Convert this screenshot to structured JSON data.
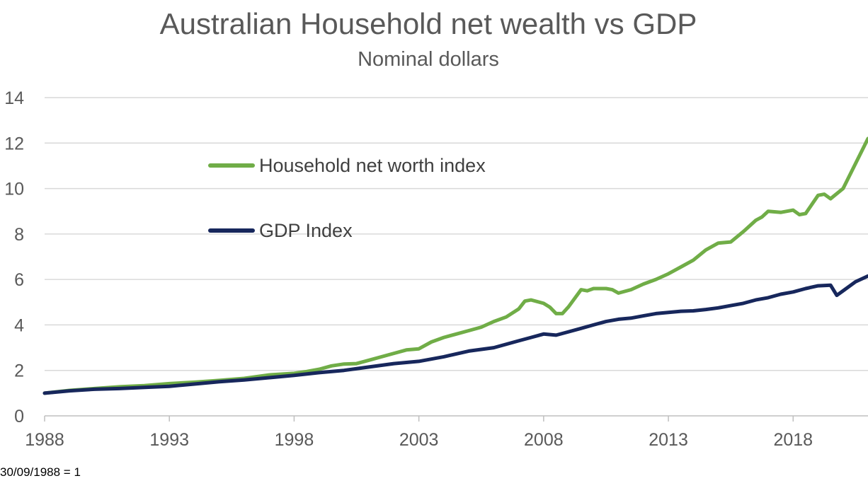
{
  "chart_data": {
    "type": "line",
    "title": "Australian Household net wealth vs GDP",
    "subtitle": "Nominal dollars",
    "note": "30/09/1988 = 1",
    "xlim": [
      1988,
      2021
    ],
    "ylim": [
      0,
      14
    ],
    "x_ticks": [
      "1988",
      "1993",
      "1998",
      "2003",
      "2008",
      "2013",
      "2018"
    ],
    "y_ticks": [
      "0",
      "2",
      "4",
      "6",
      "8",
      "10",
      "12",
      "14"
    ],
    "grid": true,
    "legend_position": "upper-left-inside",
    "series": [
      {
        "name": "Household net worth index",
        "color": "#70ad47",
        "x": [
          1988,
          1989,
          1990,
          1991,
          1992,
          1993,
          1994,
          1995,
          1996,
          1997,
          1998,
          1998.5,
          1999,
          1999.5,
          2000,
          2000.5,
          2001,
          2002,
          2002.5,
          2003,
          2003.5,
          2004,
          2004.5,
          2005,
          2005.5,
          2006,
          2006.5,
          2007,
          2007.25,
          2007.5,
          2008,
          2008.25,
          2008.5,
          2008.75,
          2009,
          2009.5,
          2009.75,
          2010,
          2010.5,
          2010.75,
          2011,
          2011.5,
          2012,
          2012.5,
          2013,
          2013.5,
          2014,
          2014.5,
          2015,
          2015.5,
          2016,
          2016.5,
          2016.75,
          2017,
          2017.5,
          2018,
          2018.25,
          2018.5,
          2019,
          2019.25,
          2019.5,
          2020,
          2021
        ],
        "values": [
          1.0,
          1.12,
          1.2,
          1.28,
          1.33,
          1.42,
          1.48,
          1.56,
          1.65,
          1.8,
          1.87,
          1.95,
          2.05,
          2.2,
          2.28,
          2.3,
          2.45,
          2.75,
          2.9,
          2.95,
          3.25,
          3.45,
          3.6,
          3.75,
          3.9,
          4.15,
          4.35,
          4.7,
          5.05,
          5.1,
          4.95,
          4.78,
          4.5,
          4.5,
          4.8,
          5.55,
          5.5,
          5.6,
          5.6,
          5.55,
          5.4,
          5.55,
          5.8,
          6.0,
          6.25,
          6.55,
          6.85,
          7.3,
          7.6,
          7.65,
          8.1,
          8.6,
          8.75,
          9.0,
          8.95,
          9.05,
          8.85,
          8.9,
          9.7,
          9.75,
          9.55,
          10.0,
          12.2
        ]
      },
      {
        "name": "GDP Index",
        "color": "#17275c",
        "x": [
          1988,
          1989,
          1990,
          1991,
          1992,
          1993,
          1994,
          1995,
          1996,
          1997,
          1998,
          1999,
          2000,
          2001,
          2002,
          2003,
          2004,
          2005,
          2006,
          2007,
          2007.5,
          2008,
          2008.5,
          2009,
          2009.5,
          2010,
          2010.5,
          2011,
          2011.5,
          2012,
          2012.5,
          2013,
          2013.5,
          2014,
          2014.5,
          2015,
          2015.5,
          2016,
          2016.5,
          2017,
          2017.5,
          2018,
          2018.5,
          2019,
          2019.5,
          2019.75,
          2020,
          2020.5,
          2021
        ],
        "values": [
          1.0,
          1.1,
          1.17,
          1.2,
          1.25,
          1.3,
          1.4,
          1.5,
          1.58,
          1.68,
          1.78,
          1.9,
          2.0,
          2.15,
          2.3,
          2.4,
          2.6,
          2.85,
          3.0,
          3.3,
          3.45,
          3.6,
          3.55,
          3.7,
          3.85,
          4.0,
          4.15,
          4.25,
          4.3,
          4.4,
          4.5,
          4.55,
          4.6,
          4.62,
          4.68,
          4.75,
          4.85,
          4.95,
          5.1,
          5.2,
          5.35,
          5.45,
          5.6,
          5.72,
          5.75,
          5.3,
          5.5,
          5.9,
          6.15
        ]
      }
    ]
  }
}
